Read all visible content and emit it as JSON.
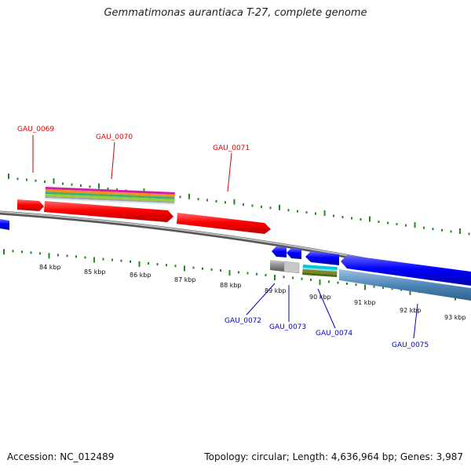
{
  "title": "Gemmatimonas aurantiaca T-27, complete genome",
  "footer": {
    "accession": "Accession: NC_012489",
    "topology": "Topology: circular; Length: 4,636,964 bp; Genes: 3,987"
  },
  "colors": {
    "forward_gene": "#ff0000",
    "reverse_gene": "#0000ff",
    "forward_label": "#dd0000",
    "reverse_label": "#0000bb",
    "scale_tick": "#228822",
    "backbone": "#888888",
    "feature_gray": "#777777",
    "feature_steel": "#4f86b8"
  },
  "scale": {
    "unit": "kbp",
    "labels": [
      "84 kbp",
      "85 kbp",
      "86 kbp",
      "87 kbp",
      "88 kbp",
      "89 kbp",
      "90 kbp",
      "91 kbp",
      "92 kbp",
      "93 kbp"
    ]
  },
  "genes": [
    {
      "id": "GAU_0069",
      "strand": "+"
    },
    {
      "id": "GAU_0070",
      "strand": "+"
    },
    {
      "id": "GAU_0071",
      "strand": "+"
    },
    {
      "id": "GAU_0072",
      "strand": "-"
    },
    {
      "id": "GAU_0073",
      "strand": "-"
    },
    {
      "id": "GAU_0074",
      "strand": "-"
    },
    {
      "id": "GAU_0075",
      "strand": "-"
    }
  ]
}
